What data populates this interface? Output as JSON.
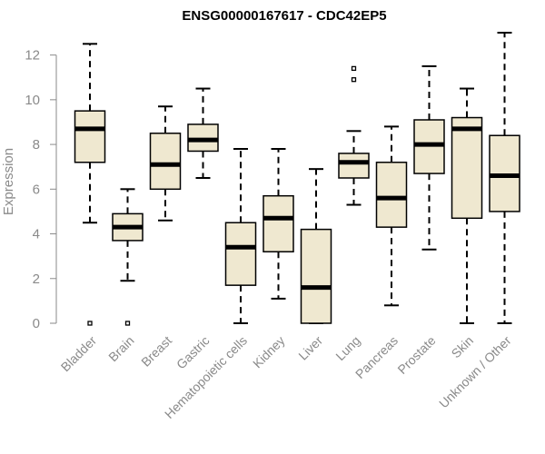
{
  "chart_data": {
    "type": "box",
    "title": "ENSG00000167617 - CDC42EP5",
    "xlabel": "",
    "ylabel": "Expression",
    "ylim": [
      0,
      13
    ],
    "yticks": [
      0,
      2,
      4,
      6,
      8,
      10,
      12
    ],
    "grid": false,
    "box_color": "#efe8d0",
    "categories": [
      "Bladder",
      "Brain",
      "Breast",
      "Gastric",
      "Hematopoietic cells",
      "Kidney",
      "Liver",
      "Lung",
      "Pancreas",
      "Prostate",
      "Skin",
      "Unknown / Other"
    ],
    "boxes": [
      {
        "whisker_low": 4.5,
        "q1": 7.2,
        "median": 8.7,
        "q3": 9.5,
        "whisker_high": 12.5,
        "outliers": [
          0.0
        ]
      },
      {
        "whisker_low": 1.9,
        "q1": 3.7,
        "median": 4.3,
        "q3": 4.9,
        "whisker_high": 6.0,
        "outliers": [
          0.0
        ]
      },
      {
        "whisker_low": 4.6,
        "q1": 6.0,
        "median": 7.1,
        "q3": 8.5,
        "whisker_high": 9.7,
        "outliers": []
      },
      {
        "whisker_low": 6.5,
        "q1": 7.7,
        "median": 8.2,
        "q3": 8.9,
        "whisker_high": 10.5,
        "outliers": []
      },
      {
        "whisker_low": 0.0,
        "q1": 1.7,
        "median": 3.4,
        "q3": 4.5,
        "whisker_high": 7.8,
        "outliers": []
      },
      {
        "whisker_low": 1.1,
        "q1": 3.2,
        "median": 4.7,
        "q3": 5.7,
        "whisker_high": 7.8,
        "outliers": []
      },
      {
        "whisker_low": 0.0,
        "q1": 0.0,
        "median": 1.6,
        "q3": 4.2,
        "whisker_high": 6.9,
        "outliers": []
      },
      {
        "whisker_low": 5.3,
        "q1": 6.5,
        "median": 7.2,
        "q3": 7.6,
        "whisker_high": 8.6,
        "outliers": [
          10.9,
          11.4
        ]
      },
      {
        "whisker_low": 0.8,
        "q1": 4.3,
        "median": 5.6,
        "q3": 7.2,
        "whisker_high": 8.8,
        "outliers": []
      },
      {
        "whisker_low": 3.3,
        "q1": 6.7,
        "median": 8.0,
        "q3": 9.1,
        "whisker_high": 11.5,
        "outliers": []
      },
      {
        "whisker_low": 0.0,
        "q1": 4.7,
        "median": 8.7,
        "q3": 9.2,
        "whisker_high": 10.5,
        "outliers": []
      },
      {
        "whisker_low": 0.0,
        "q1": 5.0,
        "median": 6.6,
        "q3": 8.4,
        "whisker_high": 13.0,
        "outliers": []
      }
    ]
  }
}
